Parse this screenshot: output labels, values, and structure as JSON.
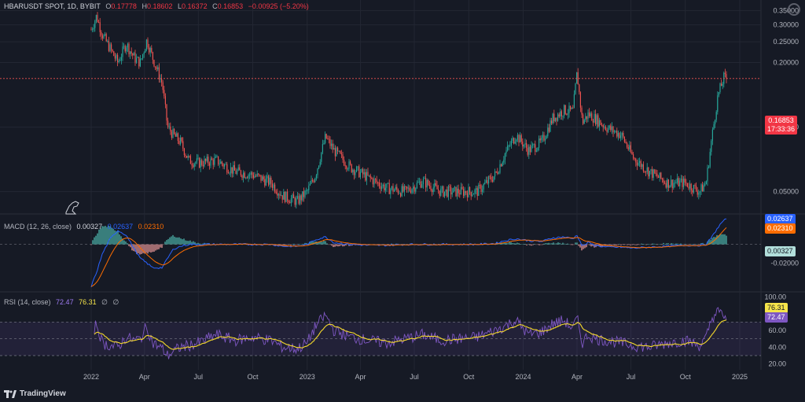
{
  "header": {
    "symbol": "HBARUSDT SPOT, 1D, BYBIT",
    "o_label": "O",
    "o": "0.17778",
    "h_label": "H",
    "h": "0.18602",
    "l_label": "L",
    "l": "0.16372",
    "c_label": "C",
    "c": "0.16853",
    "change": "−0.00925 (−5.20%)"
  },
  "price_tag": {
    "price": "0.16853",
    "countdown": "17:33:36"
  },
  "macd": {
    "label": "MACD (12, 26, close)",
    "hist": "0.00327",
    "macd": "0.02637",
    "signal": "0.02310"
  },
  "rsi": {
    "label": "RSI (14, close)",
    "rsi": "72.47",
    "ma": "76.31",
    "extra1": "∅",
    "extra2": "∅"
  },
  "brand": "TradingView",
  "colors": {
    "bg": "#161a25",
    "up": "#26a69a",
    "down": "#ef5350",
    "macd": "#2962ff",
    "signal": "#ff6d00",
    "rsi": "#7e57c2",
    "rsi_ma": "#f5d92c",
    "grid": "#232733"
  },
  "chart_data": {
    "type": "line",
    "title": "HBARUSDT SPOT, 1D, BYBIT",
    "x_ticks": [
      "2022",
      "Apr",
      "Jul",
      "Oct",
      "2023",
      "Apr",
      "Jul",
      "Oct",
      "2024",
      "Apr",
      "Jul",
      "Oct",
      "2025"
    ],
    "price_ticks": [
      "0.35000",
      "0.30000",
      "0.25000",
      "0.20000",
      "0.10000",
      "0.05000"
    ],
    "macd_ticks": [
      "-0.02000"
    ],
    "rsi_ticks": [
      "100.00",
      "80.00",
      "60.00",
      "40.00",
      "20.00"
    ],
    "series": [
      {
        "name": "HBARUSDT",
        "x": [
          "2022-01-01",
          "2022-01-10",
          "2022-01-20",
          "2022-02-01",
          "2022-02-15",
          "2022-03-01",
          "2022-03-15",
          "2022-03-25",
          "2022-04-05",
          "2022-04-15",
          "2022-05-01",
          "2022-05-10",
          "2022-05-20",
          "2022-06-01",
          "2022-06-15",
          "2022-07-01",
          "2022-08-01",
          "2022-09-01",
          "2022-10-01",
          "2022-11-01",
          "2022-11-20",
          "2022-12-15",
          "2023-01-01",
          "2023-01-15",
          "2023-02-01",
          "2023-02-15",
          "2023-03-15",
          "2023-04-15",
          "2023-05-15",
          "2023-06-15",
          "2023-07-15",
          "2023-08-15",
          "2023-09-15",
          "2023-10-15",
          "2023-11-15",
          "2023-12-01",
          "2023-12-20",
          "2024-01-10",
          "2024-02-01",
          "2024-02-20",
          "2024-03-10",
          "2024-03-25",
          "2024-04-01",
          "2024-04-10",
          "2024-04-20",
          "2024-05-01",
          "2024-05-20",
          "2024-06-15",
          "2024-07-05",
          "2024-08-01",
          "2024-09-01",
          "2024-10-01",
          "2024-10-25",
          "2024-11-05",
          "2024-11-15",
          "2024-11-25",
          "2024-12-05",
          "2024-12-11"
        ],
        "values": [
          0.285,
          0.33,
          0.27,
          0.235,
          0.2,
          0.245,
          0.21,
          0.2,
          0.255,
          0.21,
          0.16,
          0.1,
          0.092,
          0.085,
          0.07,
          0.068,
          0.07,
          0.062,
          0.06,
          0.055,
          0.048,
          0.045,
          0.05,
          0.06,
          0.09,
          0.078,
          0.065,
          0.058,
          0.052,
          0.05,
          0.056,
          0.05,
          0.05,
          0.05,
          0.06,
          0.075,
          0.092,
          0.078,
          0.085,
          0.11,
          0.12,
          0.118,
          0.18,
          0.105,
          0.115,
          0.11,
          0.1,
          0.092,
          0.072,
          0.062,
          0.055,
          0.055,
          0.05,
          0.055,
          0.09,
          0.14,
          0.17,
          0.16853
        ]
      },
      {
        "name": "MACD",
        "values": [
          -0.045,
          -0.03,
          -0.01,
          0.005,
          0.015,
          0.01,
          -0.005,
          -0.015,
          -0.02,
          -0.025,
          -0.025,
          -0.015,
          -0.005,
          -0.002,
          0,
          0,
          0,
          0,
          0,
          0,
          -0.002,
          -0.002,
          0,
          0.005,
          0.008,
          0.002,
          0,
          -0.001,
          -0.001,
          0,
          0,
          0,
          0,
          0,
          0.001,
          0.004,
          0.006,
          0.004,
          0.003,
          0.007,
          0.008,
          0.006,
          0.01,
          -0.002,
          0.002,
          -0.001,
          -0.003,
          -0.003,
          -0.004,
          -0.003,
          -0.002,
          -0.001,
          -0.001,
          0,
          0.008,
          0.018,
          0.026,
          0.02637
        ]
      },
      {
        "name": "RSI",
        "values": [
          55,
          68,
          45,
          42,
          40,
          52,
          48,
          50,
          65,
          45,
          38,
          30,
          35,
          40,
          42,
          45,
          55,
          48,
          52,
          48,
          40,
          38,
          45,
          65,
          78,
          60,
          52,
          48,
          45,
          50,
          55,
          48,
          50,
          52,
          60,
          65,
          72,
          55,
          58,
          68,
          72,
          62,
          75,
          45,
          55,
          50,
          48,
          45,
          42,
          40,
          45,
          48,
          42,
          50,
          75,
          82,
          78,
          72.47
        ]
      }
    ]
  }
}
